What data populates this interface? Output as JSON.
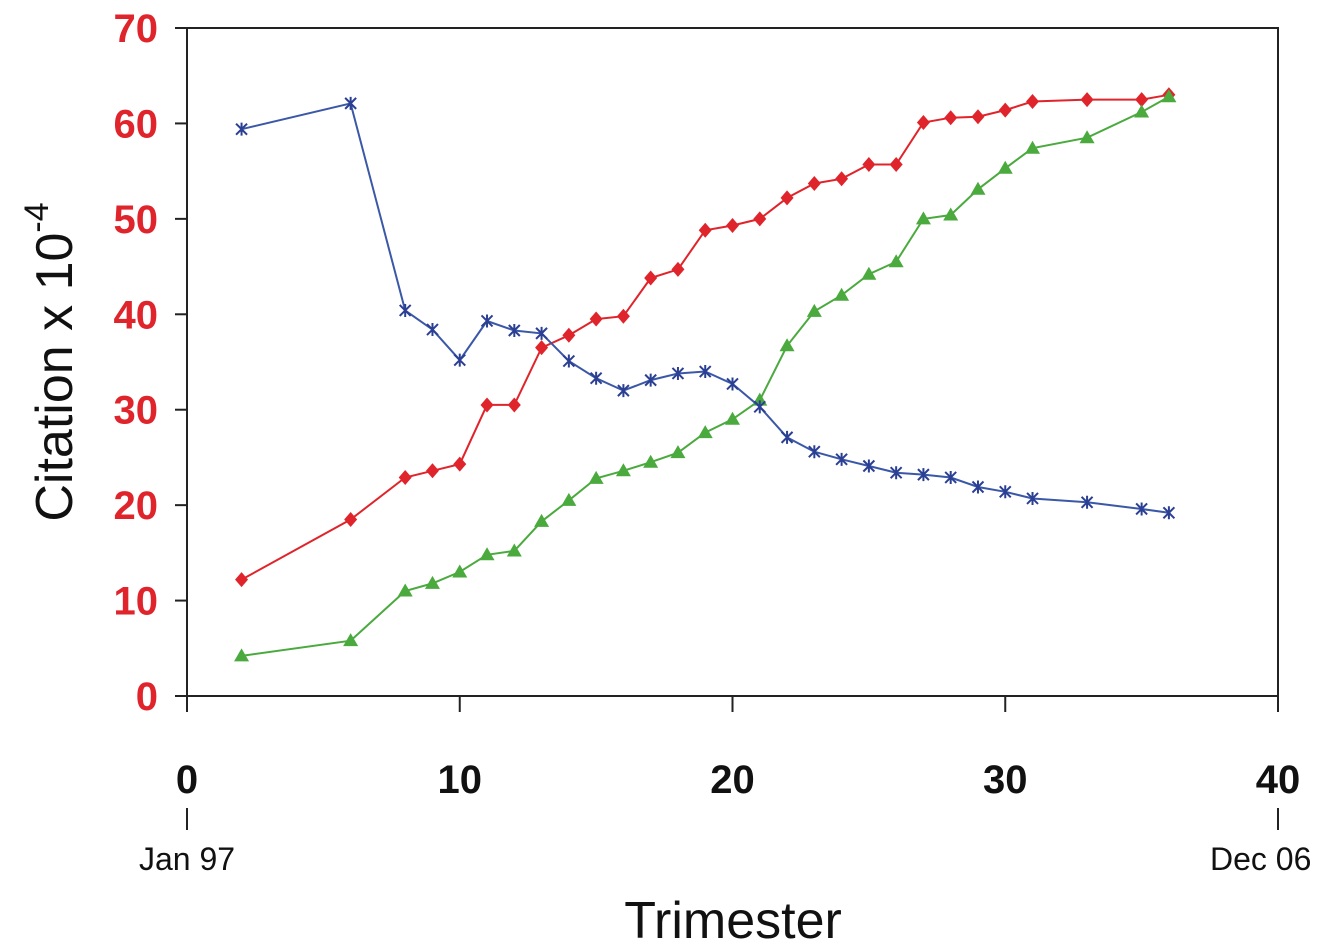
{
  "chart_data": {
    "type": "line",
    "xlabel": "Trimester",
    "ylabel": "Citation x 10",
    "ylabel_exponent": "-4",
    "xlim": [
      0,
      40
    ],
    "ylim": [
      0,
      70
    ],
    "xticks": [
      "0",
      "10",
      "20",
      "30",
      "40"
    ],
    "yticks": [
      "0",
      "10",
      "20",
      "30",
      "40",
      "50",
      "60",
      "70"
    ],
    "x_start_label": "Jan 97",
    "x_end_label": "Dec 06",
    "grid": false,
    "legend": "none",
    "series": [
      {
        "color": "#e0242b",
        "line_color": "#e0242b",
        "marker": "diamond",
        "x": [
          2,
          6,
          8,
          9,
          10,
          11,
          12,
          13,
          14,
          15,
          16,
          17,
          18,
          19,
          20,
          21,
          22,
          23,
          24,
          25,
          26,
          27,
          28,
          29,
          30,
          31,
          33,
          35,
          36
        ],
        "values": [
          12.2,
          18.5,
          22.9,
          23.6,
          24.3,
          30.5,
          30.5,
          36.5,
          37.8,
          39.5,
          39.8,
          43.8,
          44.7,
          48.8,
          49.3,
          50.0,
          52.2,
          53.7,
          54.2,
          55.7,
          55.7,
          60.1,
          60.6,
          60.7,
          61.4,
          62.3,
          62.5,
          62.5,
          63.0
        ]
      },
      {
        "color": "#4aaa3e",
        "line_color": "#4aaa3e",
        "marker": "triangle",
        "x": [
          2,
          6,
          8,
          9,
          10,
          11,
          12,
          13,
          14,
          15,
          16,
          17,
          18,
          19,
          20,
          21,
          22,
          23,
          24,
          25,
          26,
          27,
          28,
          29,
          30,
          31,
          33,
          35,
          36
        ],
        "values": [
          4.2,
          5.8,
          11.0,
          11.8,
          13.0,
          14.8,
          15.2,
          18.3,
          20.5,
          22.8,
          23.6,
          24.5,
          25.5,
          27.6,
          29.0,
          31.0,
          36.7,
          40.3,
          42.0,
          44.2,
          45.5,
          50.0,
          50.4,
          53.1,
          55.3,
          57.4,
          58.5,
          61.2,
          62.8
        ]
      },
      {
        "color": "#2b3f93",
        "line_color": "#3b58a8",
        "marker": "asterisk",
        "x": [
          2,
          6,
          8,
          9,
          10,
          11,
          12,
          13,
          14,
          15,
          16,
          17,
          18,
          19,
          20,
          21,
          22,
          23,
          24,
          25,
          26,
          27,
          28,
          29,
          30,
          31,
          33,
          35,
          36
        ],
        "values": [
          59.4,
          62.1,
          40.4,
          38.4,
          35.2,
          39.3,
          38.3,
          38.0,
          35.1,
          33.3,
          32.0,
          33.1,
          33.8,
          34.0,
          32.7,
          30.3,
          27.1,
          25.6,
          24.8,
          24.1,
          23.4,
          23.2,
          22.9,
          21.9,
          21.4,
          20.7,
          20.3,
          19.6,
          19.2
        ]
      }
    ]
  }
}
